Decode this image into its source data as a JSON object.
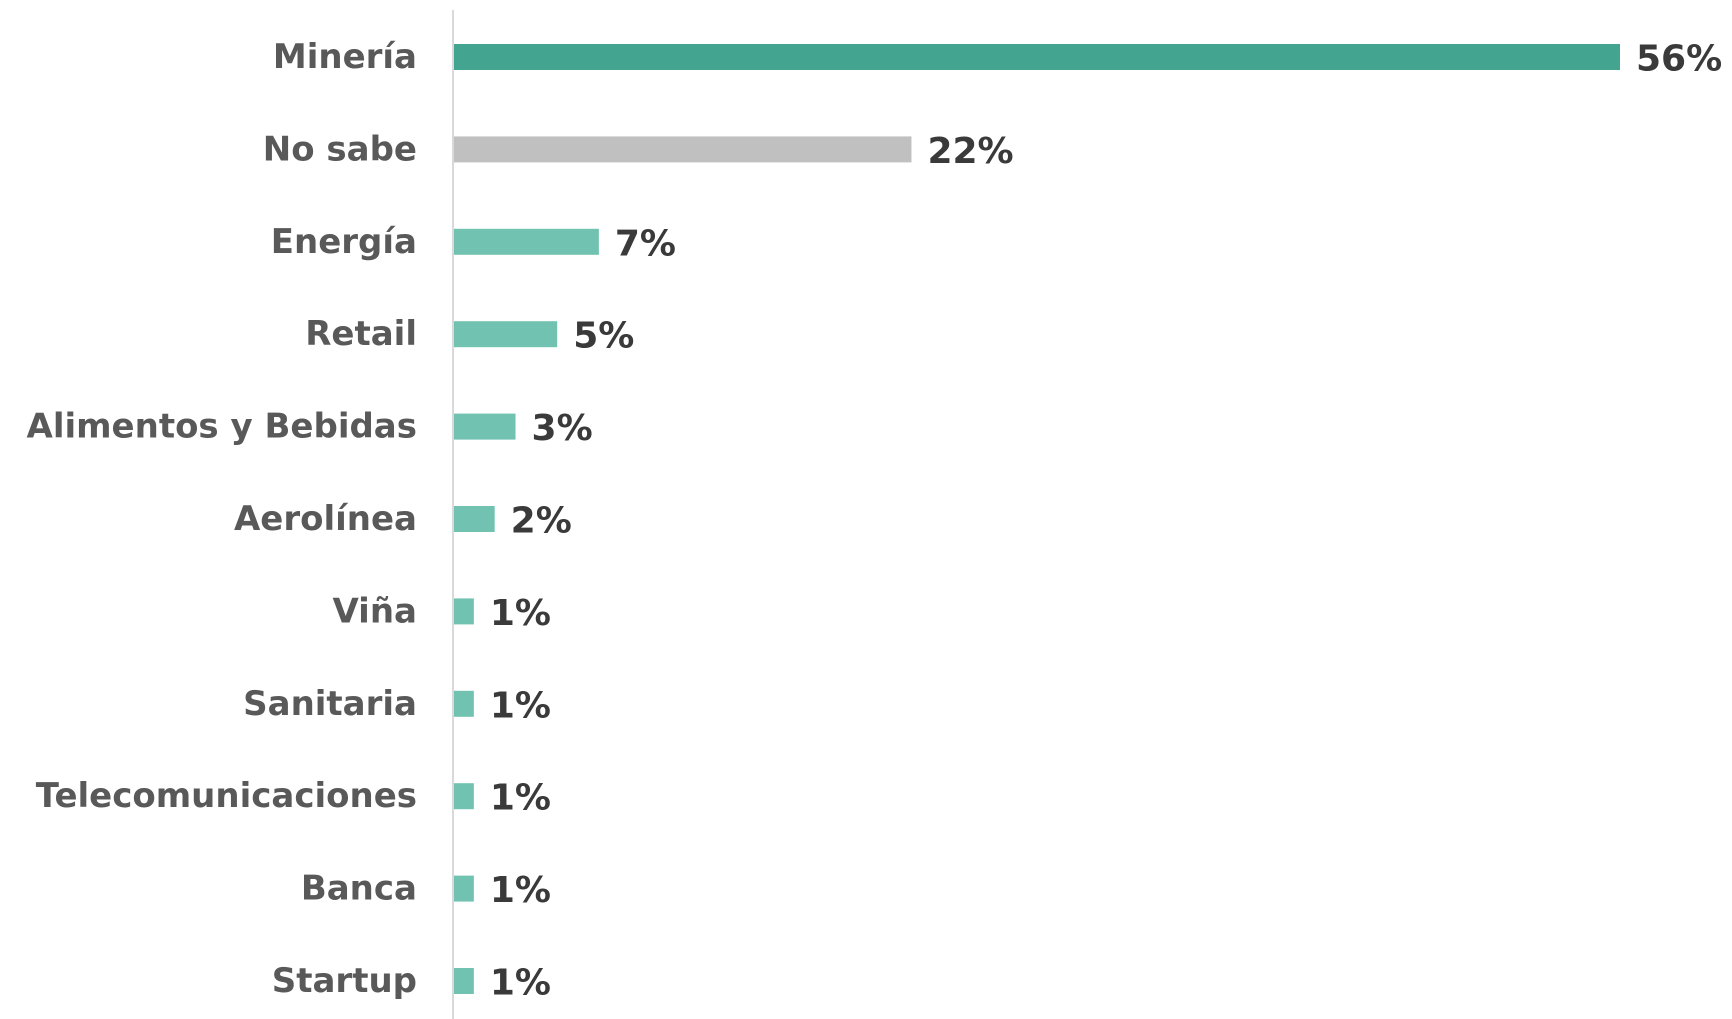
{
  "chart_data": {
    "type": "bar",
    "orientation": "horizontal",
    "categories": [
      "Minería",
      "No sabe",
      "Energía",
      "Retail",
      "Alimentos y Bebidas",
      "Aerolínea",
      "Viña",
      "Sanitaria",
      "Telecomunicaciones",
      "Banca",
      "Startup"
    ],
    "values": [
      56,
      22,
      7,
      5,
      3,
      2,
      1,
      1,
      1,
      1,
      1
    ],
    "value_labels": [
      "56%",
      "22%",
      "7%",
      "5%",
      "3%",
      "2%",
      "1%",
      "1%",
      "1%",
      "1%",
      "1%"
    ],
    "xlim": [
      0,
      56
    ],
    "grid": false,
    "legend": "none",
    "colors": {
      "highlight": "#43a48f",
      "neutral": "#c0c0c0",
      "default": "#72c2b2",
      "axis": "#d9d9d9"
    },
    "bar_color_keys": [
      "highlight",
      "neutral",
      "default",
      "default",
      "default",
      "default",
      "default",
      "default",
      "default",
      "default",
      "default"
    ]
  }
}
